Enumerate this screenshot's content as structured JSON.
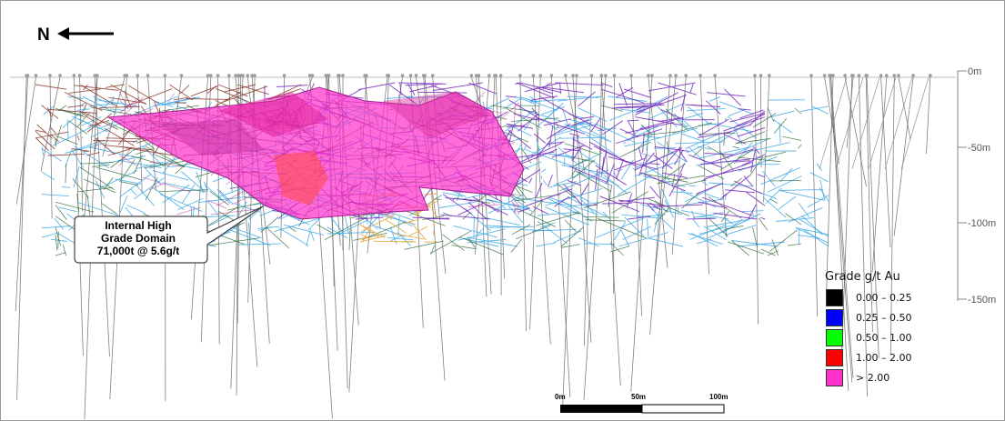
{
  "north": {
    "letter": "N",
    "icon": "north-arrow-icon"
  },
  "depth_axis": {
    "labels": [
      "0m",
      "-50m",
      "-100m",
      "-150m"
    ]
  },
  "callout": {
    "line1": "Internal High",
    "line2": "Grade Domain",
    "line3": "71,000t @ 5.6g/t"
  },
  "legend": {
    "title": "Grade g/t Au",
    "items": [
      {
        "label": "0.00 – 0.25",
        "color": "#000000"
      },
      {
        "label": "0.25 – 0.50",
        "color": "#0000ff"
      },
      {
        "label": "0.50 – 1.00",
        "color": "#00ff00"
      },
      {
        "label": "1.00 – 2.00",
        "color": "#ff0000"
      },
      {
        "label": "> 2.00",
        "color": "#ff33cc"
      }
    ]
  },
  "scale_bar": {
    "labels": [
      "0m",
      "50m",
      "100m"
    ]
  },
  "colors": {
    "blue_wireframe": "#3fa9e6",
    "purple_wireframe": "#7a2fbf",
    "high_grade_fill": "#ff33cc",
    "brown_wireframe": "#8b3a2a",
    "orange_wireframe": "#e8a23a",
    "green_wireframe": "#2e6b3a"
  }
}
